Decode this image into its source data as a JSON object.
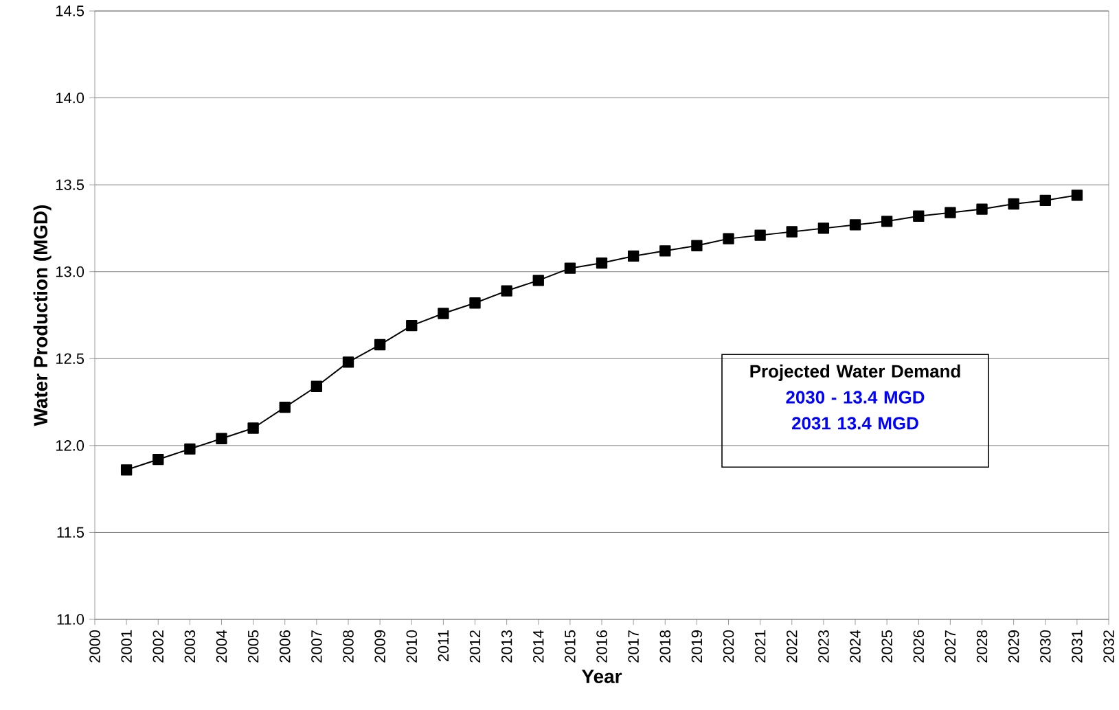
{
  "chart_data": {
    "type": "line",
    "xlabel": "Year",
    "ylabel": "Water Production (MGD)",
    "x": [
      2001,
      2002,
      2003,
      2004,
      2005,
      2006,
      2007,
      2008,
      2009,
      2010,
      2011,
      2012,
      2013,
      2014,
      2015,
      2016,
      2017,
      2018,
      2019,
      2020,
      2021,
      2022,
      2023,
      2024,
      2025,
      2026,
      2027,
      2028,
      2029,
      2030,
      2031
    ],
    "series": [
      {
        "color": "#000000",
        "values": [
          11.86,
          11.92,
          11.98,
          12.04,
          12.1,
          12.22,
          12.34,
          12.48,
          12.58,
          12.69,
          12.76,
          12.82,
          12.89,
          12.95,
          13.02,
          13.05,
          13.09,
          13.12,
          13.15,
          13.19,
          13.21,
          13.23,
          13.25,
          13.27,
          13.29,
          13.32,
          13.34,
          13.36,
          13.39,
          13.41,
          13.44
        ]
      }
    ],
    "xlim": [
      2000,
      2032
    ],
    "xticks": [
      2000,
      2001,
      2002,
      2003,
      2004,
      2005,
      2006,
      2007,
      2008,
      2009,
      2010,
      2011,
      2012,
      2013,
      2014,
      2015,
      2016,
      2017,
      2018,
      2019,
      2020,
      2021,
      2022,
      2023,
      2024,
      2025,
      2026,
      2027,
      2028,
      2029,
      2030,
      2031,
      2032
    ],
    "ylim": [
      11.0,
      14.5
    ],
    "yticks": [
      {
        "value": 11.0,
        "label": "11.0"
      },
      {
        "value": 11.5,
        "label": "11.5"
      },
      {
        "value": 12.0,
        "label": "12.0"
      },
      {
        "value": 12.5,
        "label": "12.5"
      },
      {
        "value": 13.0,
        "label": "13.0"
      },
      {
        "value": 13.5,
        "label": "13.5"
      },
      {
        "value": 14.0,
        "label": "14.0"
      },
      {
        "value": 14.5,
        "label": "14.5"
      }
    ],
    "grid": "y",
    "marker": "square",
    "line_style": "solid",
    "annotations": [
      "Projected Water Demand",
      "2030 - 13.4 MGD",
      "2031 13.4 MGD"
    ]
  }
}
